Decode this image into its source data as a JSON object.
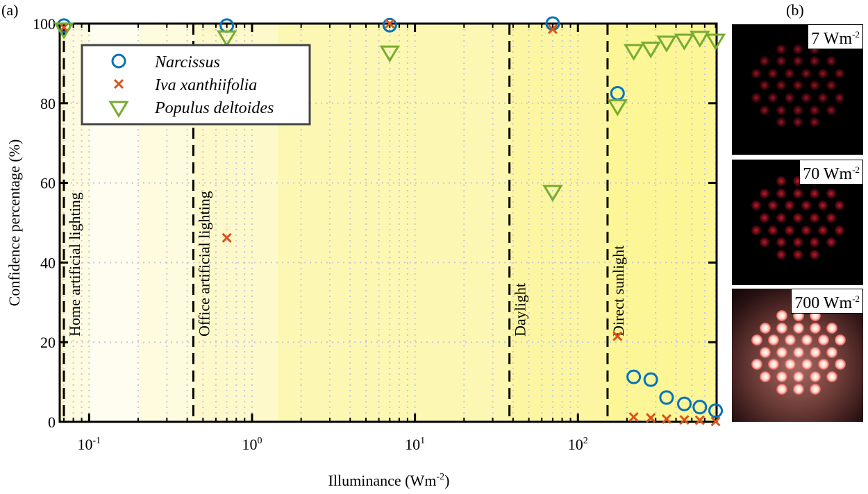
{
  "chart_data": {
    "type": "scatter",
    "panel_label": "(a)",
    "xlabel": "Illuminance (Wm",
    "xlabel_sup": "-2",
    "xlabel_end": ")",
    "ylabel": "Confidence percentage (%)",
    "xscale": "log",
    "xlim": [
      0.066,
      710
    ],
    "ylim": [
      0,
      100
    ],
    "x_ticks": [
      {
        "v": 0.1,
        "b": "10",
        "e": "-1"
      },
      {
        "v": 1,
        "b": "10",
        "e": "0"
      },
      {
        "v": 10,
        "b": "10",
        "e": "1"
      },
      {
        "v": 100,
        "b": "10",
        "e": "2"
      }
    ],
    "y_ticks": [
      0,
      20,
      40,
      60,
      80,
      100
    ],
    "grid": true,
    "legend_position": "top-left",
    "series": [
      {
        "name": "Narcissus",
        "marker": "circle",
        "color": "#0072BD",
        "x": [
          0.07,
          0.7,
          7,
          70,
          175,
          220,
          280,
          350,
          450,
          560,
          700
        ],
        "y": [
          99.5,
          99.5,
          99.6,
          100,
          82.5,
          11.3,
          10.6,
          6.1,
          4.5,
          3.7,
          2.8
        ]
      },
      {
        "name": "Iva xanthiifolia",
        "marker": "x",
        "color": "#D95319",
        "x": [
          0.07,
          0.7,
          7,
          70,
          175,
          220,
          280,
          350,
          450,
          560,
          700
        ],
        "y": [
          99,
          46.2,
          100,
          98.6,
          21.5,
          1.2,
          1.0,
          0.7,
          0.5,
          0.4,
          0.1
        ]
      },
      {
        "name": "Populus deltoides",
        "marker": "triangle-down",
        "color": "#77AC30",
        "x": [
          0.07,
          0.7,
          7,
          70,
          175,
          220,
          280,
          350,
          450,
          560,
          700
        ],
        "y": [
          98.8,
          96.8,
          93,
          58,
          79.5,
          93.4,
          94,
          95.5,
          96,
          96.7,
          96
        ]
      }
    ],
    "annotations": [
      {
        "x": 0.07,
        "label": "Home artificial lighting"
      },
      {
        "x": 0.436,
        "label": "Office artificial lighting"
      },
      {
        "x": 38,
        "label": "Daylight"
      },
      {
        "x": 152,
        "label": "Direct sunlight"
      }
    ]
  },
  "panel_b": {
    "label": "(b)",
    "images": [
      {
        "value": "7 Wm",
        "sup": "-2",
        "intensity": 0.35
      },
      {
        "value": "70 Wm",
        "sup": "-2",
        "intensity": 0.5
      },
      {
        "value": "700 Wm",
        "sup": "-2",
        "intensity": 1
      }
    ]
  }
}
